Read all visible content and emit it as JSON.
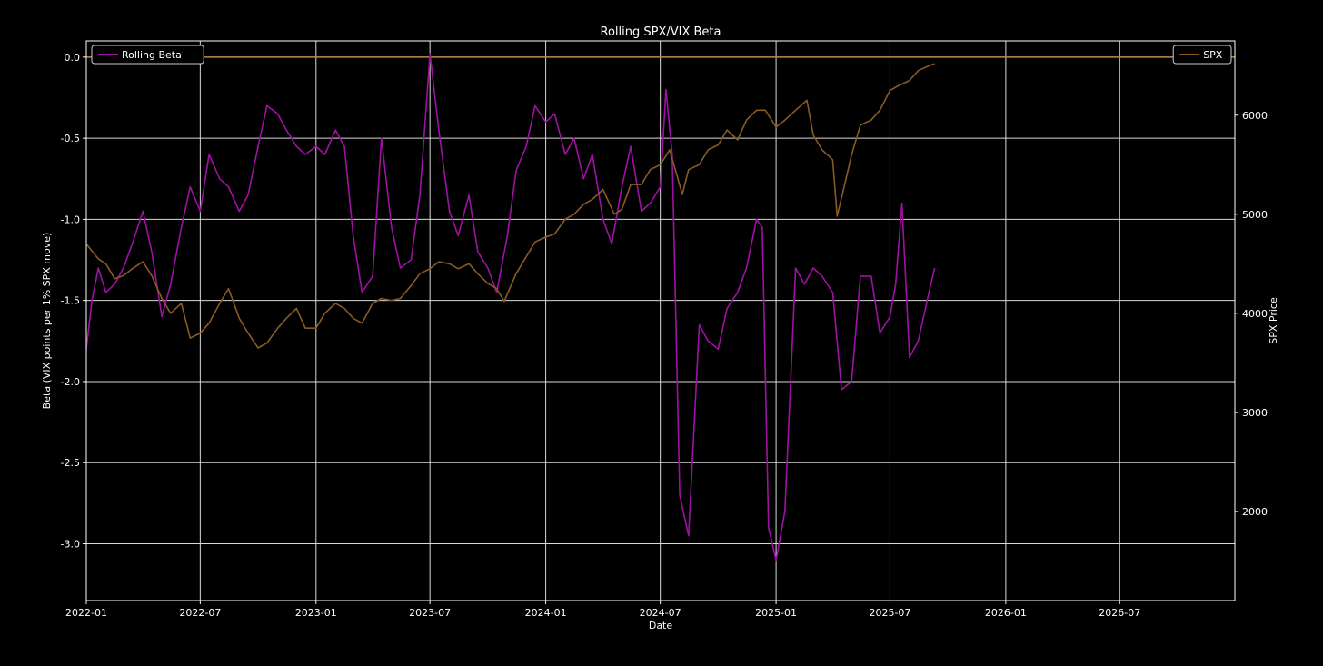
{
  "chart_data": {
    "type": "line",
    "title": "Rolling SPX/VIX Beta",
    "xlabel": "Date",
    "ylabel": "Beta (VIX points per 1% SPX move)",
    "y2label": "SPX Price",
    "x_ticks": [
      "2022-01",
      "2022-07",
      "2023-01",
      "2023-07",
      "2024-01",
      "2024-07",
      "2025-01",
      "2025-07",
      "2026-01",
      "2026-07"
    ],
    "xlim": [
      "2022-01-01",
      "2026-12-31"
    ],
    "ylim": [
      -3.35,
      0.1
    ],
    "y_ticks": [
      0.0,
      -0.5,
      -1.0,
      -1.5,
      -2.0,
      -2.5,
      -3.0
    ],
    "y2lim": [
      1100,
      6750
    ],
    "y2_ticks": [
      2000,
      3000,
      4000,
      5000,
      6000
    ],
    "grid": true,
    "legend_left": "top-left",
    "legend_right": "top-right",
    "reference_line": {
      "axis": "left",
      "y": 0.0,
      "color": "#b8864a"
    },
    "colors": {
      "beta": "#9e12a3",
      "spx": "#8a5a26",
      "grid": "#d9d9d9",
      "background": "#000000",
      "text": "#ffffff"
    },
    "series": [
      {
        "name": "Rolling Beta",
        "axis": "left",
        "color": "#9e12a3",
        "x": [
          "2022-01-01",
          "2022-01-10",
          "2022-01-20",
          "2022-02-01",
          "2022-02-15",
          "2022-03-01",
          "2022-03-15",
          "2022-04-01",
          "2022-04-15",
          "2022-05-01",
          "2022-05-15",
          "2022-06-01",
          "2022-06-15",
          "2022-07-01",
          "2022-07-15",
          "2022-08-01",
          "2022-08-15",
          "2022-09-01",
          "2022-09-15",
          "2022-10-01",
          "2022-10-15",
          "2022-11-01",
          "2022-11-15",
          "2022-12-01",
          "2022-12-15",
          "2023-01-01",
          "2023-01-15",
          "2023-02-01",
          "2023-02-15",
          "2023-03-01",
          "2023-03-15",
          "2023-04-01",
          "2023-04-15",
          "2023-05-01",
          "2023-05-15",
          "2023-06-01",
          "2023-06-15",
          "2023-07-01",
          "2023-07-15",
          "2023-08-01",
          "2023-08-15",
          "2023-09-01",
          "2023-09-15",
          "2023-10-01",
          "2023-10-15",
          "2023-11-01",
          "2023-11-15",
          "2023-12-01",
          "2023-12-15",
          "2024-01-01",
          "2024-01-15",
          "2024-02-01",
          "2024-02-15",
          "2024-03-01",
          "2024-03-15",
          "2024-04-01",
          "2024-04-15",
          "2024-05-01",
          "2024-05-15",
          "2024-06-01",
          "2024-06-15",
          "2024-07-01",
          "2024-07-10",
          "2024-07-20",
          "2024-08-01",
          "2024-08-15",
          "2024-09-01",
          "2024-09-15",
          "2024-10-01",
          "2024-10-15",
          "2024-11-01",
          "2024-11-15",
          "2024-12-01",
          "2024-12-10",
          "2024-12-20",
          "2025-01-01",
          "2025-01-15",
          "2025-02-01",
          "2025-02-15",
          "2025-03-01",
          "2025-03-15",
          "2025-04-01",
          "2025-04-15",
          "2025-05-01",
          "2025-05-15",
          "2025-06-01",
          "2025-06-15",
          "2025-07-01",
          "2025-07-10",
          "2025-07-20",
          "2025-08-01",
          "2025-08-15",
          "2025-09-01",
          "2025-09-10"
        ],
        "values": [
          -1.8,
          -1.5,
          -1.3,
          -1.45,
          -1.4,
          -1.3,
          -1.15,
          -0.95,
          -1.2,
          -1.6,
          -1.4,
          -1.05,
          -0.8,
          -0.95,
          -0.6,
          -0.75,
          -0.8,
          -0.95,
          -0.85,
          -0.55,
          -0.3,
          -0.35,
          -0.45,
          -0.55,
          -0.6,
          -0.55,
          -0.6,
          -0.45,
          -0.55,
          -1.1,
          -1.45,
          -1.35,
          -0.5,
          -1.05,
          -1.3,
          -1.25,
          -0.85,
          0.02,
          -0.45,
          -0.95,
          -1.1,
          -0.85,
          -1.2,
          -1.3,
          -1.45,
          -1.1,
          -0.7,
          -0.55,
          -0.3,
          -0.4,
          -0.35,
          -0.6,
          -0.5,
          -0.75,
          -0.6,
          -1.0,
          -1.15,
          -0.8,
          -0.55,
          -0.95,
          -0.9,
          -0.8,
          -0.2,
          -0.6,
          -2.7,
          -2.95,
          -1.65,
          -1.75,
          -1.8,
          -1.55,
          -1.45,
          -1.3,
          -1.0,
          -1.05,
          -2.9,
          -3.1,
          -2.8,
          -1.3,
          -1.4,
          -1.3,
          -1.35,
          -1.45,
          -2.05,
          -2.0,
          -1.35,
          -1.35,
          -1.7,
          -1.6,
          -1.4,
          -0.9,
          -1.85,
          -1.75,
          -1.45,
          -1.3
        ]
      },
      {
        "name": "SPX",
        "axis": "right",
        "color": "#8a5a26",
        "x": [
          "2022-01-01",
          "2022-01-20",
          "2022-02-01",
          "2022-02-15",
          "2022-03-01",
          "2022-03-15",
          "2022-04-01",
          "2022-04-15",
          "2022-05-01",
          "2022-05-15",
          "2022-06-01",
          "2022-06-15",
          "2022-07-01",
          "2022-07-15",
          "2022-08-01",
          "2022-08-15",
          "2022-09-01",
          "2022-09-15",
          "2022-10-01",
          "2022-10-15",
          "2022-11-01",
          "2022-11-15",
          "2022-12-01",
          "2022-12-15",
          "2023-01-01",
          "2023-01-15",
          "2023-02-01",
          "2023-02-15",
          "2023-03-01",
          "2023-03-15",
          "2023-04-01",
          "2023-04-15",
          "2023-05-01",
          "2023-05-15",
          "2023-06-01",
          "2023-06-15",
          "2023-07-01",
          "2023-07-15",
          "2023-08-01",
          "2023-08-15",
          "2023-09-01",
          "2023-09-15",
          "2023-10-01",
          "2023-10-15",
          "2023-10-27",
          "2023-11-15",
          "2023-12-01",
          "2023-12-15",
          "2024-01-01",
          "2024-01-15",
          "2024-02-01",
          "2024-02-15",
          "2024-03-01",
          "2024-03-15",
          "2024-04-01",
          "2024-04-19",
          "2024-05-01",
          "2024-05-15",
          "2024-06-01",
          "2024-06-15",
          "2024-07-01",
          "2024-07-16",
          "2024-08-05",
          "2024-08-15",
          "2024-09-01",
          "2024-09-15",
          "2024-10-01",
          "2024-10-15",
          "2024-11-01",
          "2024-11-15",
          "2024-12-01",
          "2024-12-15",
          "2025-01-01",
          "2025-01-15",
          "2025-02-01",
          "2025-02-19",
          "2025-03-01",
          "2025-03-15",
          "2025-04-01",
          "2025-04-08",
          "2025-04-20",
          "2025-05-01",
          "2025-05-15",
          "2025-06-01",
          "2025-06-15",
          "2025-07-01",
          "2025-07-15",
          "2025-08-01",
          "2025-08-15",
          "2025-09-01",
          "2025-09-10"
        ],
        "values": [
          4700,
          4550,
          4500,
          4350,
          4380,
          4450,
          4520,
          4380,
          4150,
          4000,
          4100,
          3750,
          3800,
          3900,
          4100,
          4250,
          3950,
          3800,
          3650,
          3700,
          3850,
          3950,
          4050,
          3850,
          3850,
          4000,
          4100,
          4050,
          3950,
          3900,
          4100,
          4150,
          4130,
          4150,
          4280,
          4400,
          4450,
          4520,
          4500,
          4450,
          4500,
          4400,
          4300,
          4250,
          4120,
          4400,
          4570,
          4720,
          4770,
          4800,
          4950,
          5000,
          5100,
          5150,
          5250,
          5000,
          5050,
          5300,
          5300,
          5450,
          5500,
          5650,
          5200,
          5450,
          5500,
          5650,
          5700,
          5850,
          5750,
          5950,
          6050,
          6050,
          5880,
          5950,
          6050,
          6150,
          5800,
          5650,
          5550,
          4980,
          5300,
          5600,
          5900,
          5950,
          6050,
          6250,
          6300,
          6350,
          6450,
          6500,
          6520
        ]
      }
    ]
  }
}
